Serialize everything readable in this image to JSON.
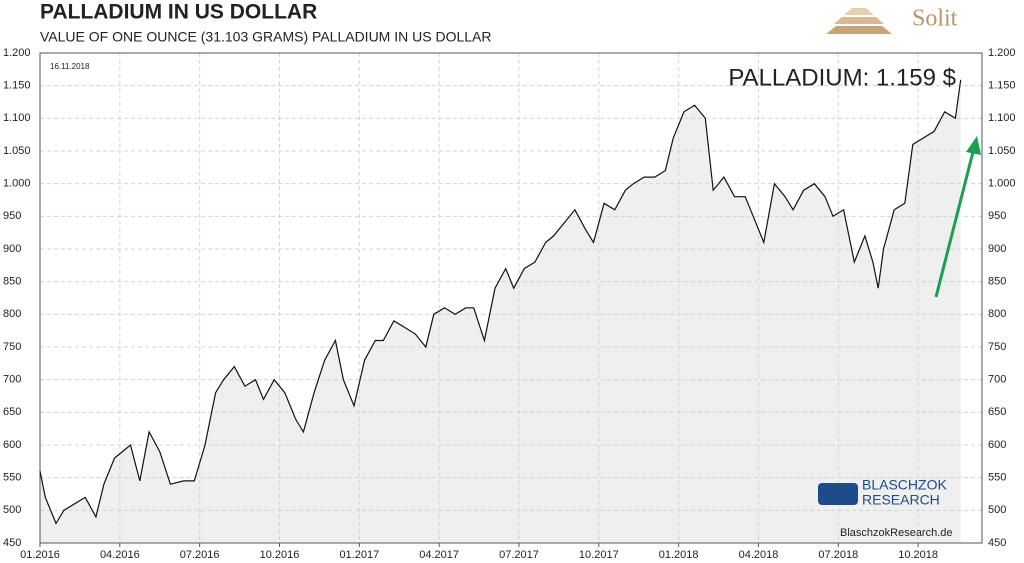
{
  "chart_data": {
    "type": "line",
    "title": "PALLADIUM  IN  US DOLLAR",
    "subtitle": "VALUE OF ONE OUNCE (31.103 GRAMS) PALLADIUM IN US DOLLAR",
    "annotation": "PALLADIUM: 1.159 $",
    "date_label": "16.11.2018",
    "x": [
      0,
      0.2,
      0.6,
      0.9,
      1.3,
      1.7,
      2.1,
      2.4,
      2.8,
      3.4,
      3.75,
      4.1,
      4.5,
      4.9,
      5.4,
      5.8,
      6.2,
      6.6,
      6.9,
      7.3,
      7.7,
      8.1,
      8.4,
      8.8,
      9.2,
      9.6,
      9.9,
      10.3,
      10.7,
      11.1,
      11.4,
      11.8,
      12.2,
      12.6,
      12.9,
      13.3,
      13.7,
      14.1,
      14.5,
      14.8,
      15.2,
      15.6,
      16.0,
      16.3,
      16.7,
      17.1,
      17.5,
      17.8,
      18.2,
      18.6,
      19.0,
      19.3,
      19.7,
      20.1,
      20.5,
      20.8,
      21.2,
      21.6,
      22.0,
      22.3,
      22.7,
      23.1,
      23.5,
      23.8,
      24.2,
      24.6,
      25.0,
      25.3,
      25.7,
      26.1,
      26.5,
      26.8,
      27.2,
      27.6,
      28.0,
      28.3,
      28.7,
      29.1,
      29.5,
      29.8,
      30.2,
      30.6,
      31.0,
      31.3,
      31.5,
      31.7,
      32.1,
      32.5,
      32.8,
      33.2,
      33.6,
      34.0,
      34.4,
      34.6
    ],
    "values": [
      560,
      520,
      480,
      500,
      510,
      520,
      490,
      540,
      580,
      600,
      545,
      620,
      590,
      540,
      545,
      545,
      600,
      680,
      700,
      720,
      690,
      700,
      670,
      700,
      680,
      640,
      620,
      680,
      730,
      760,
      700,
      660,
      730,
      760,
      760,
      790,
      780,
      770,
      750,
      800,
      810,
      800,
      810,
      810,
      760,
      840,
      870,
      840,
      870,
      880,
      910,
      920,
      940,
      960,
      930,
      910,
      970,
      960,
      990,
      1000,
      1010,
      1010,
      1020,
      1070,
      1110,
      1120,
      1100,
      990,
      1010,
      980,
      980,
      950,
      910,
      1000,
      980,
      960,
      990,
      1000,
      980,
      950,
      960,
      880,
      920,
      880,
      840,
      900,
      960,
      970,
      1060,
      1070,
      1080,
      1110,
      1100,
      1159
    ],
    "color": "#111111",
    "area_color": "#efefef",
    "xlim": [
      0,
      35.4
    ],
    "xticks": [
      {
        "value": 0,
        "label": "01.2016"
      },
      {
        "value": 3,
        "label": "04.2016"
      },
      {
        "value": 6,
        "label": "07.2016"
      },
      {
        "value": 9,
        "label": "10.2016"
      },
      {
        "value": 12,
        "label": "01.2017"
      },
      {
        "value": 15,
        "label": "04.2017"
      },
      {
        "value": 18,
        "label": "07.2017"
      },
      {
        "value": 21,
        "label": "10.2017"
      },
      {
        "value": 24,
        "label": "01.2018"
      },
      {
        "value": 27,
        "label": "04.2018"
      },
      {
        "value": 30,
        "label": "07.2018"
      },
      {
        "value": 33,
        "label": "10.2018"
      }
    ],
    "ylim": [
      450,
      1200
    ],
    "yticks": [
      450,
      500,
      550,
      600,
      650,
      700,
      750,
      800,
      850,
      900,
      950,
      {
        "value": 1000,
        "label": "1.000"
      },
      {
        "value": 1050,
        "label": "1.050"
      },
      {
        "value": 1100,
        "label": "1.100"
      },
      {
        "value": 1150,
        "label": "1.150"
      },
      {
        "value": 1200,
        "label": "1.200"
      }
    ],
    "grid": true
  },
  "logos": {
    "solit": "Solit",
    "research_top": "BLASCHZOK",
    "research_bottom": "RESEARCH",
    "website": "BlaschzokResearch.de"
  }
}
